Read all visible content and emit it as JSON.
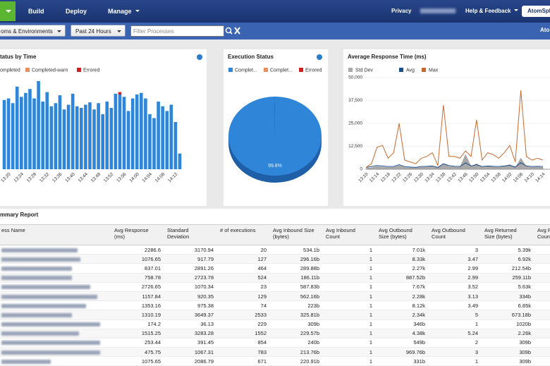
{
  "nav": {
    "items": [
      "Build",
      "Deploy",
      "Manage"
    ],
    "right": [
      "Privacy",
      "Help & Feedback"
    ],
    "button": "AtomSph"
  },
  "toolbar": {
    "environment": "oms & Environments",
    "period": "Past 24 Hours",
    "search_placeholder": "Filter Processes",
    "right_text": "Ato"
  },
  "chart_data": [
    {
      "type": "bar",
      "title": "tatus by Time",
      "stacked": true,
      "categories": [
        null,
        "13:20",
        null,
        null,
        "13:24",
        null,
        null,
        "13:28",
        null,
        null,
        "13:32",
        null,
        null,
        "13:36",
        null,
        null,
        "13:40",
        null,
        null,
        "13:44",
        null,
        null,
        "13:48",
        null,
        null,
        "13:52",
        null,
        null,
        "13:56",
        null,
        null,
        "14:00",
        null,
        null,
        "14:04",
        null,
        null,
        "14:08",
        null,
        null,
        "14:12",
        null
      ],
      "series": [
        {
          "name": "ompleted",
          "color": "#2f86d9",
          "values": [
            88,
            90,
            84,
            105,
            92,
            97,
            102,
            90,
            112,
            86,
            98,
            80,
            84,
            94,
            76,
            82,
            96,
            80,
            78,
            82,
            85,
            76,
            84,
            70,
            86,
            78,
            96,
            95,
            92,
            74,
            90,
            95,
            97,
            90,
            70,
            65,
            86,
            80,
            74,
            82,
            60,
            20
          ]
        },
        {
          "name": "Completed-warn",
          "color": "#e8915c",
          "values": [
            0,
            0,
            0,
            0,
            0,
            0,
            0,
            0,
            0,
            0,
            0,
            0,
            0,
            0,
            0,
            0,
            0,
            0,
            0,
            0,
            0,
            0,
            0,
            0,
            0,
            0,
            0,
            0,
            0,
            0,
            0,
            0,
            0,
            0,
            0,
            0,
            0,
            0,
            0,
            0,
            0,
            0
          ]
        },
        {
          "name": "Errored",
          "color": "#cc2222",
          "values": [
            0,
            0,
            0,
            0,
            0,
            0,
            0,
            0,
            0,
            0,
            0,
            0,
            0,
            0,
            0,
            0,
            0,
            0,
            0,
            0,
            0,
            0,
            0,
            0,
            0,
            0,
            0,
            3,
            0,
            0,
            0,
            0,
            0,
            0,
            0,
            0,
            0,
            0,
            0,
            0,
            0,
            0
          ]
        }
      ]
    },
    {
      "type": "pie",
      "title": "Execution Status",
      "series": [
        {
          "name": "Complet...",
          "color": "#2f86d9"
        },
        {
          "name": "Complet...",
          "color": "#e8915c"
        },
        {
          "name": "Errored",
          "color": "#cc2222"
        }
      ],
      "values": [
        99.8,
        0,
        0.2
      ],
      "value_labels": [
        "99.8%",
        null,
        null
      ]
    },
    {
      "type": "line",
      "title": "Average Response Time (ms)",
      "grid": true,
      "categories": [
        "13:10",
        null,
        "13:14",
        null,
        "13:18",
        null,
        "13:22",
        null,
        "13:26",
        null,
        "13:30",
        null,
        "13:34",
        null,
        "13:38",
        null,
        "13:42",
        null,
        "13:46",
        null,
        "13:50",
        null,
        "13:54",
        null,
        "13:58",
        null,
        "14:02",
        null,
        "14:06",
        null,
        "14:10",
        null,
        "14:14"
      ],
      "ylim": [
        0,
        50000
      ],
      "yticks": [
        0,
        {
          "value": 12500,
          "label": "12,500"
        },
        {
          "value": 25000,
          "label": "25,000"
        },
        {
          "value": 37500,
          "label": "37,500"
        },
        {
          "value": 50000,
          "label": "50,000"
        }
      ],
      "series": [
        {
          "name": "Std Dev",
          "color": "#a9a9a9",
          "style": "area",
          "values": [
            500,
            800,
            1500,
            1200,
            1000,
            1000,
            2000,
            900,
            800,
            700,
            1000,
            1200,
            1500,
            600,
            3000,
            1500,
            1200,
            1000,
            8000,
            1500,
            3000,
            1000,
            1500,
            1200,
            1000,
            1500,
            2500,
            800,
            6000,
            1500,
            1000,
            1200,
            1000
          ]
        },
        {
          "name": "Avg",
          "color": "#1f4e8c",
          "style": "line",
          "values": [
            1000,
            1500,
            2000,
            1800,
            1500,
            1500,
            2500,
            1400,
            1200,
            1000,
            1500,
            1600,
            1800,
            1000,
            3000,
            2000,
            1600,
            1500,
            3500,
            1800,
            2500,
            1500,
            1800,
            1600,
            1500,
            1800,
            2200,
            1200,
            3500,
            1800,
            1500,
            1600,
            1500
          ]
        },
        {
          "name": "Max",
          "color": "#c8682c",
          "style": "line",
          "values": [
            1000,
            3000,
            12000,
            13000,
            6000,
            9000,
            25000,
            5000,
            4000,
            3000,
            6000,
            7000,
            9000,
            2000,
            35000,
            7000,
            7000,
            6000,
            10000,
            7000,
            27000,
            5000,
            9000,
            8000,
            6000,
            9000,
            13000,
            4000,
            43000,
            7000,
            5000,
            6000,
            5000
          ]
        }
      ]
    }
  ],
  "summary": {
    "title": "mmary Report",
    "columns": [
      [
        "ess Name"
      ],
      [
        "Avg Response",
        "(ms)"
      ],
      [
        "Standard",
        "Deviation"
      ],
      [
        "# of executions"
      ],
      [
        "Avg Inbound Size",
        "(bytes)"
      ],
      [
        "Avg Inbound",
        "Count"
      ],
      [
        "Avg Outbound",
        "Size (bytes)"
      ],
      [
        "Avg Outbound",
        "Count"
      ],
      [
        "Avg Returned",
        "Size (bytes)"
      ],
      [
        "Avg R",
        "Coun"
      ]
    ],
    "rows": [
      [
        2286.6,
        3170.94,
        20,
        "534.1b",
        1,
        "7.01k",
        3,
        "5.39k"
      ],
      [
        1076.65,
        917.79,
        127,
        "296.16b",
        1,
        "8.33k",
        3.47,
        "6.92k"
      ],
      [
        837.01,
        2891.26,
        464,
        "289.88b",
        1,
        "2.27k",
        2.99,
        "212.54b"
      ],
      [
        758.78,
        2723.78,
        524,
        "186.11b",
        1,
        "887.52b",
        2.99,
        "259.11b"
      ],
      [
        2726.65,
        1070.34,
        23,
        "587.83b",
        1,
        "7.67k",
        3.52,
        "5.63k"
      ],
      [
        1157.84,
        920.35,
        129,
        "562.16b",
        1,
        "2.28k",
        3.13,
        "334b"
      ],
      [
        1353.16,
        975.38,
        74,
        "223b",
        1,
        "8.12k",
        3.49,
        "6.85k"
      ],
      [
        1310.19,
        3649.37,
        2533,
        "325.81b",
        1,
        "2.34k",
        5,
        "673.18b"
      ],
      [
        174.2,
        36.13,
        229,
        "309b",
        1,
        "346b",
        1,
        "1020b"
      ],
      [
        1515.25,
        3283.28,
        1552,
        "229.57b",
        1,
        "4.38k",
        5.24,
        "2.26k"
      ],
      [
        253.44,
        391.45,
        854,
        "240b",
        1,
        "549b",
        2,
        "309b"
      ],
      [
        475.75,
        1067.31,
        783,
        "213.76b",
        1,
        "969.76b",
        3,
        "309b"
      ],
      [
        1075.65,
        2086.79,
        671,
        "220.91b",
        1,
        "331b",
        1,
        "309b"
      ]
    ]
  }
}
